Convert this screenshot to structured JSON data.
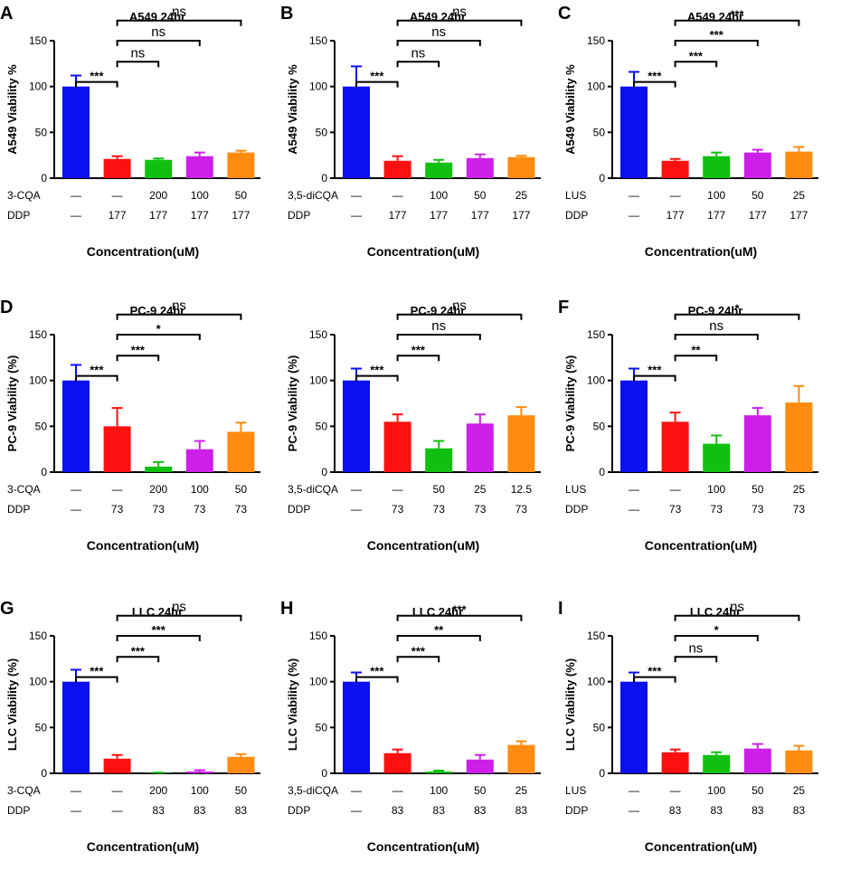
{
  "colors": {
    "series": [
      "#0a10ee",
      "#ff1010",
      "#10c010",
      "#cc20e8",
      "#ff8c10"
    ],
    "ink": "#000000"
  },
  "chart_data": [
    {
      "type": "bar",
      "panel_label": "A",
      "title": "A549  24hr",
      "ylabel": "A549 Viability %",
      "xlabel": "Concentration(uM)",
      "ylim": [
        0,
        150
      ],
      "yticks": [
        "0",
        "50",
        "100",
        "150"
      ],
      "values": [
        100,
        21,
        20,
        24,
        28
      ],
      "errors": [
        12,
        3,
        1.5,
        4,
        2
      ],
      "drug_label": "3-CQA",
      "drug_values": [
        "—",
        "—",
        "200",
        "100",
        "50"
      ],
      "ddp_label": "DDP",
      "ddp_values": [
        "—",
        "177",
        "177",
        "177",
        "177"
      ],
      "comparisons": [
        {
          "from": 0,
          "to": 1,
          "label": "***",
          "level": 0
        },
        {
          "from": 1,
          "to": 2,
          "label": "ns",
          "level": 1
        },
        {
          "from": 1,
          "to": 3,
          "label": "ns",
          "level": 2
        },
        {
          "from": 1,
          "to": 4,
          "label": "ns",
          "level": 3
        }
      ]
    },
    {
      "type": "bar",
      "panel_label": "B",
      "title": "A549  24hr",
      "ylabel": "A549 Viability %",
      "xlabel": "Concentration(uM)",
      "ylim": [
        0,
        150
      ],
      "yticks": [
        "0",
        "50",
        "100",
        "150"
      ],
      "values": [
        100,
        19,
        17,
        22,
        23
      ],
      "errors": [
        22,
        5,
        3,
        4,
        1.5
      ],
      "drug_label": "3,5-diCQA",
      "drug_values": [
        "—",
        "—",
        "100",
        "50",
        "25"
      ],
      "ddp_label": "DDP",
      "ddp_values": [
        "—",
        "177",
        "177",
        "177",
        "177"
      ],
      "comparisons": [
        {
          "from": 0,
          "to": 1,
          "label": "***",
          "level": 0
        },
        {
          "from": 1,
          "to": 2,
          "label": "ns",
          "level": 1
        },
        {
          "from": 1,
          "to": 3,
          "label": "ns",
          "level": 2
        },
        {
          "from": 1,
          "to": 4,
          "label": "ns",
          "level": 3
        }
      ]
    },
    {
      "type": "bar",
      "panel_label": "C",
      "title": "A549  24hr",
      "ylabel": "A549 Viability %",
      "xlabel": "Concentration(uM)",
      "ylim": [
        0,
        150
      ],
      "yticks": [
        "0",
        "50",
        "100",
        "150"
      ],
      "values": [
        100,
        19,
        24,
        28,
        29
      ],
      "errors": [
        16,
        2,
        4,
        3,
        5
      ],
      "drug_label": "LUS",
      "drug_values": [
        "—",
        "—",
        "100",
        "50",
        "25"
      ],
      "ddp_label": "DDP",
      "ddp_values": [
        "—",
        "177",
        "177",
        "177",
        "177"
      ],
      "comparisons": [
        {
          "from": 0,
          "to": 1,
          "label": "***",
          "level": 0
        },
        {
          "from": 1,
          "to": 2,
          "label": "***",
          "level": 1
        },
        {
          "from": 1,
          "to": 3,
          "label": "***",
          "level": 2
        },
        {
          "from": 1,
          "to": 4,
          "label": "***",
          "level": 3
        }
      ]
    },
    {
      "type": "bar",
      "panel_label": "D",
      "title": "PC-9  24hr",
      "ylabel": "PC-9 Viability (%)",
      "xlabel": "Concentration(uM)",
      "ylim": [
        0,
        150
      ],
      "yticks": [
        "0",
        "50",
        "100",
        "150"
      ],
      "values": [
        100,
        50,
        6,
        25,
        44
      ],
      "errors": [
        17,
        20,
        5,
        9,
        10
      ],
      "drug_label": "3-CQA",
      "drug_values": [
        "—",
        "—",
        "200",
        "100",
        "50"
      ],
      "ddp_label": "DDP",
      "ddp_values": [
        "—",
        "73",
        "73",
        "73",
        "73"
      ],
      "comparisons": [
        {
          "from": 0,
          "to": 1,
          "label": "***",
          "level": 0
        },
        {
          "from": 1,
          "to": 2,
          "label": "***",
          "level": 1
        },
        {
          "from": 1,
          "to": 3,
          "label": "*",
          "level": 2
        },
        {
          "from": 1,
          "to": 4,
          "label": "ns",
          "level": 3
        }
      ]
    },
    {
      "type": "bar",
      "panel_label": "",
      "title": "PC-9  24hr",
      "ylabel": "PC-9 Viability (%)",
      "xlabel": "Concentration(uM)",
      "ylim": [
        0,
        150
      ],
      "yticks": [
        "0",
        "50",
        "100",
        "150"
      ],
      "values": [
        100,
        55,
        26,
        53,
        62
      ],
      "errors": [
        13,
        8,
        8,
        10,
        9
      ],
      "drug_label": "3,5-diCQA",
      "drug_values": [
        "—",
        "—",
        "50",
        "25",
        "12.5"
      ],
      "ddp_label": "DDP",
      "ddp_values": [
        "—",
        "73",
        "73",
        "73",
        "73"
      ],
      "comparisons": [
        {
          "from": 0,
          "to": 1,
          "label": "***",
          "level": 0
        },
        {
          "from": 1,
          "to": 2,
          "label": "***",
          "level": 1
        },
        {
          "from": 1,
          "to": 3,
          "label": "ns",
          "level": 2
        },
        {
          "from": 1,
          "to": 4,
          "label": "ns",
          "level": 3
        }
      ]
    },
    {
      "type": "bar",
      "panel_label": "F",
      "title": "PC-9  24hr",
      "ylabel": "PC-9 Viability (%)",
      "xlabel": "Concentration(uM)",
      "ylim": [
        0,
        150
      ],
      "yticks": [
        "0",
        "50",
        "100",
        "150"
      ],
      "values": [
        100,
        55,
        31,
        62,
        76
      ],
      "errors": [
        13,
        10,
        9,
        8,
        18
      ],
      "drug_label": "LUS",
      "drug_values": [
        "—",
        "—",
        "100",
        "50",
        "25"
      ],
      "ddp_label": "DDP",
      "ddp_values": [
        "—",
        "73",
        "73",
        "73",
        "73"
      ],
      "comparisons": [
        {
          "from": 0,
          "to": 1,
          "label": "***",
          "level": 0
        },
        {
          "from": 1,
          "to": 2,
          "label": "**",
          "level": 1
        },
        {
          "from": 1,
          "to": 3,
          "label": "ns",
          "level": 2
        },
        {
          "from": 1,
          "to": 4,
          "label": "*",
          "level": 3
        }
      ]
    },
    {
      "type": "bar",
      "panel_label": "G",
      "title": "LLC 24hr",
      "ylabel": "LLC Viability (%)",
      "xlabel": "Concentration(uM)",
      "ylim": [
        0,
        150
      ],
      "yticks": [
        "0",
        "50",
        "100",
        "150"
      ],
      "values": [
        100,
        16,
        0.5,
        2,
        18
      ],
      "errors": [
        13,
        4,
        0.3,
        1.5,
        3
      ],
      "drug_label": "3-CQA",
      "drug_values": [
        "—",
        "—",
        "200",
        "100",
        "50"
      ],
      "ddp_label": "DDP",
      "ddp_values": [
        "—",
        "—",
        "83",
        "83",
        "83"
      ],
      "comparisons": [
        {
          "from": 0,
          "to": 1,
          "label": "***",
          "level": 0
        },
        {
          "from": 1,
          "to": 2,
          "label": "***",
          "level": 1
        },
        {
          "from": 1,
          "to": 3,
          "label": "***",
          "level": 2
        },
        {
          "from": 1,
          "to": 4,
          "label": "ns",
          "level": 3
        }
      ]
    },
    {
      "type": "bar",
      "panel_label": "H",
      "title": "LLC 24hr",
      "ylabel": "LLC Viability (%)",
      "xlabel": "Concentration(uM)",
      "ylim": [
        0,
        150
      ],
      "yticks": [
        "0",
        "50",
        "100",
        "150"
      ],
      "values": [
        100,
        22,
        2,
        15,
        31
      ],
      "errors": [
        10,
        4,
        1,
        5,
        4
      ],
      "drug_label": "3,5-diCQA",
      "drug_values": [
        "—",
        "—",
        "100",
        "50",
        "25"
      ],
      "ddp_label": "DDP",
      "ddp_values": [
        "—",
        "83",
        "83",
        "83",
        "83"
      ],
      "comparisons": [
        {
          "from": 0,
          "to": 1,
          "label": "***",
          "level": 0
        },
        {
          "from": 1,
          "to": 2,
          "label": "***",
          "level": 1
        },
        {
          "from": 1,
          "to": 3,
          "label": "**",
          "level": 2
        },
        {
          "from": 1,
          "to": 4,
          "label": "***",
          "level": 3
        }
      ]
    },
    {
      "type": "bar",
      "panel_label": "I",
      "title": "LLC 24hr",
      "ylabel": "LLC Viability (%)",
      "xlabel": "Concentration(uM)",
      "ylim": [
        0,
        150
      ],
      "yticks": [
        "0",
        "50",
        "100",
        "150"
      ],
      "values": [
        100,
        23,
        20,
        27,
        25
      ],
      "errors": [
        10,
        3,
        3,
        5,
        5
      ],
      "drug_label": "LUS",
      "drug_values": [
        "—",
        "—",
        "100",
        "50",
        "25"
      ],
      "ddp_label": "DDP",
      "ddp_values": [
        "—",
        "83",
        "83",
        "83",
        "83"
      ],
      "comparisons": [
        {
          "from": 0,
          "to": 1,
          "label": "***",
          "level": 0
        },
        {
          "from": 1,
          "to": 2,
          "label": "ns",
          "level": 1
        },
        {
          "from": 1,
          "to": 3,
          "label": "*",
          "level": 2
        },
        {
          "from": 1,
          "to": 4,
          "label": "ns",
          "level": 3
        }
      ]
    }
  ]
}
